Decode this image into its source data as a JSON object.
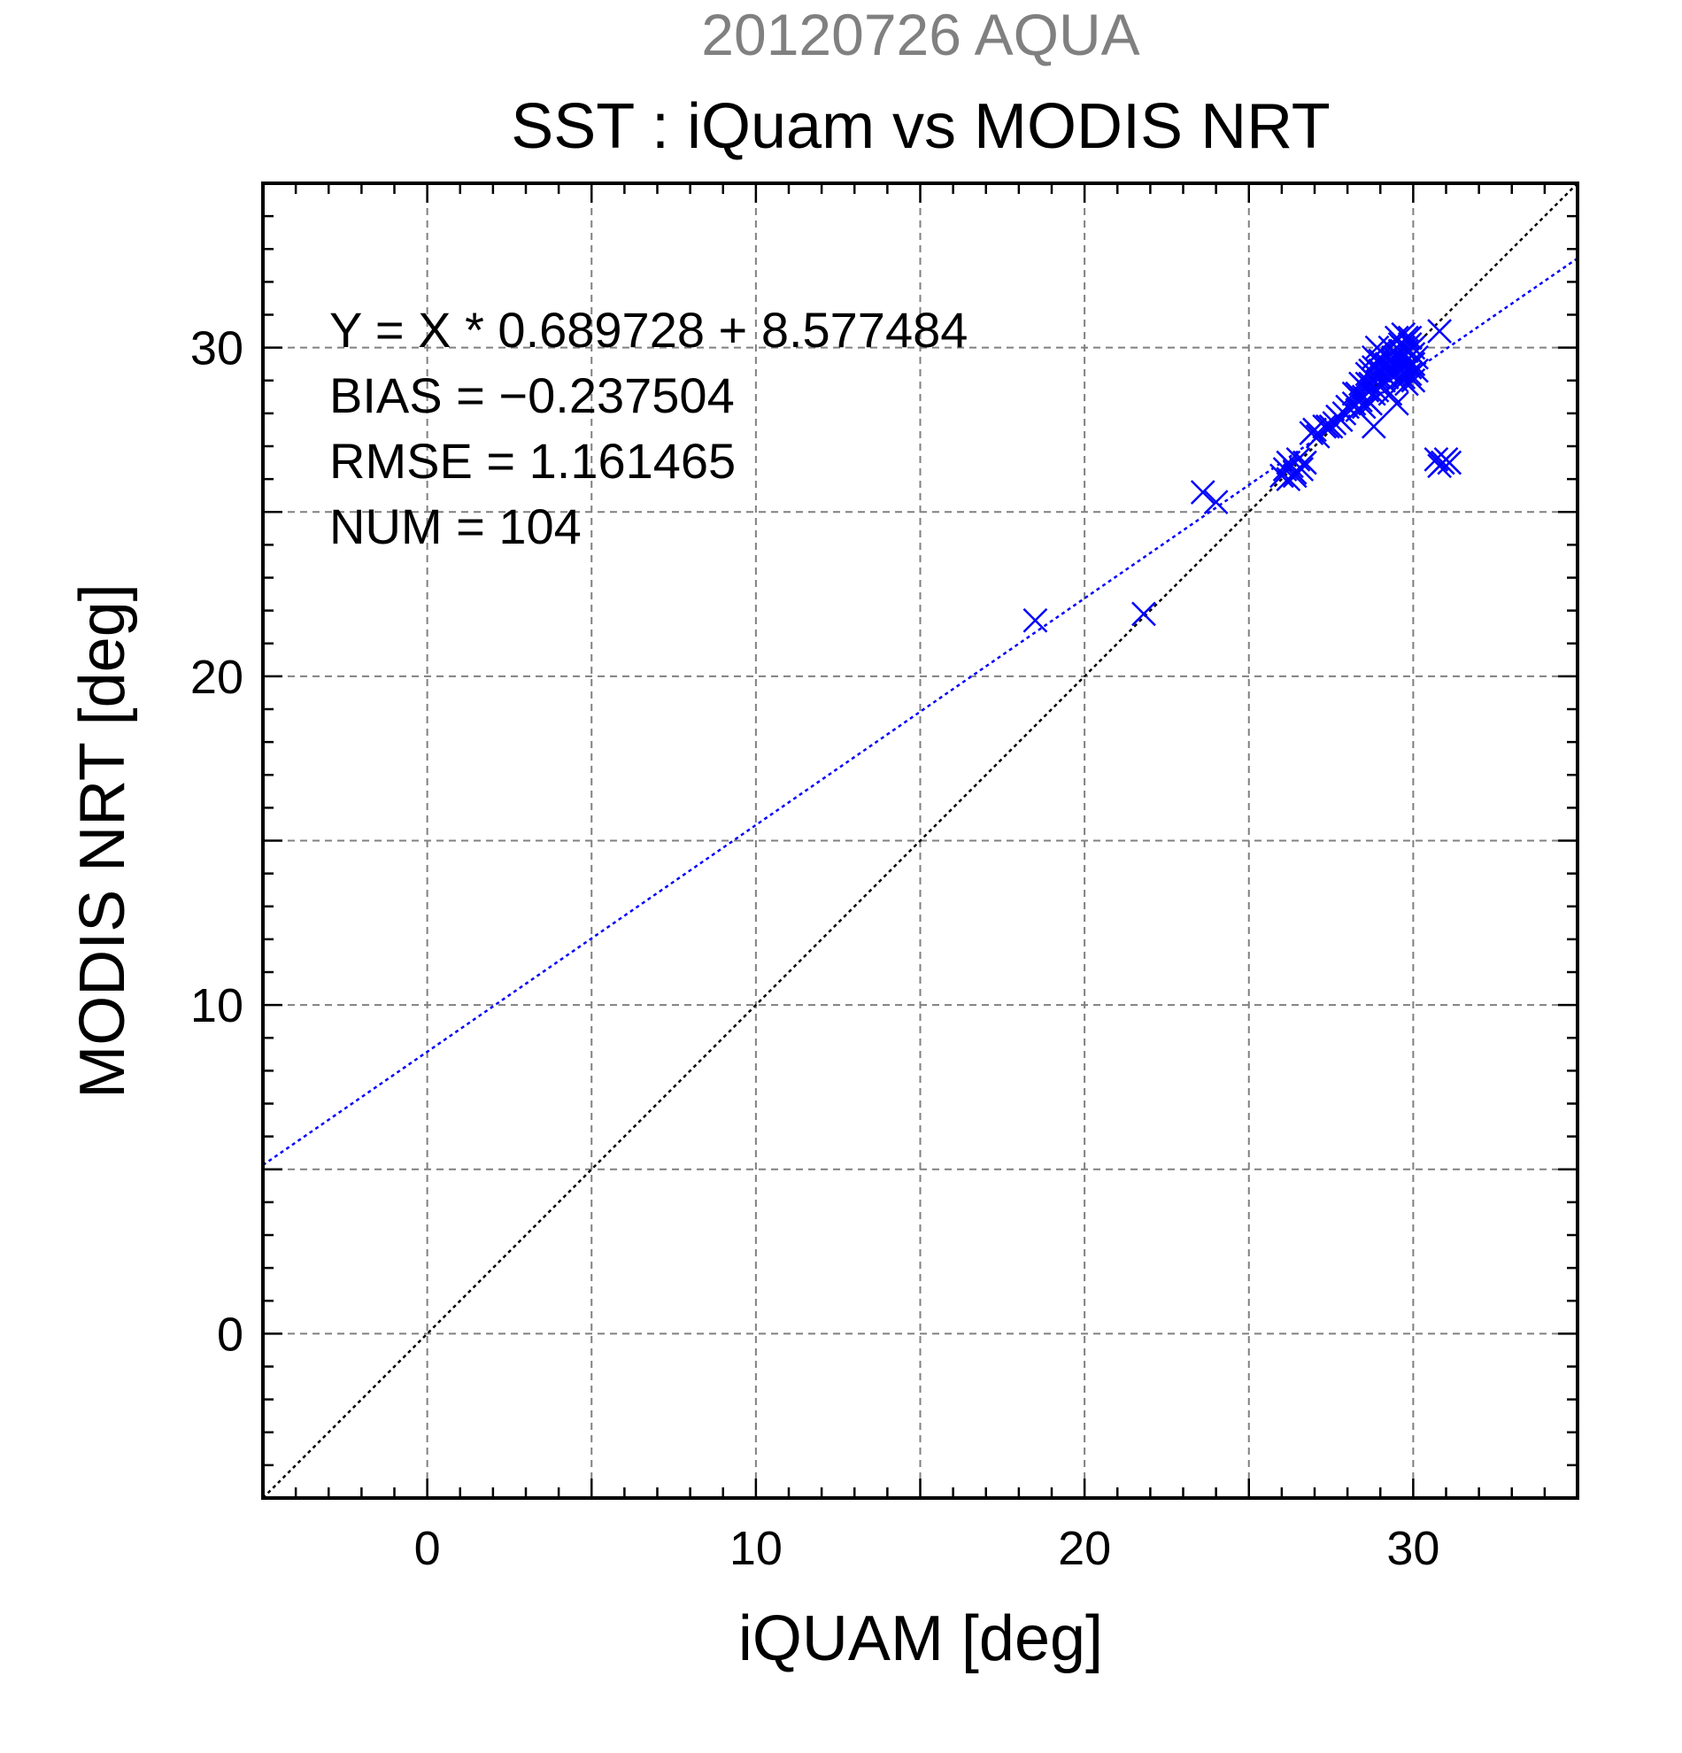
{
  "chart_data": {
    "type": "scatter",
    "supertitle": "20120726 AQUA",
    "title": "SST : iQuam vs MODIS NRT",
    "xlabel": "iQUAM [deg]",
    "ylabel": "MODIS NRT [deg]",
    "xlim": [
      -5,
      35
    ],
    "ylim": [
      -5,
      35
    ],
    "xticks": [
      0,
      10,
      20,
      30
    ],
    "yticks": [
      0,
      10,
      20,
      30
    ],
    "grid_step": 5,
    "minor_step": 1,
    "grid": true,
    "annotations": [
      "Y = X * 0.689728 + 8.577484",
      "BIAS = −0.237504",
      "RMSE = 1.161465",
      "NUM = 104"
    ],
    "fit": {
      "slope": 0.689728,
      "intercept": 8.577484
    },
    "colors": {
      "supertitle": "#808080",
      "points": "#0000ff",
      "fit_line": "#0000ff",
      "identity_line": "#000000",
      "grid": "#808080"
    },
    "series": [
      {
        "marker": "x",
        "points": [
          [
            18.5,
            21.7
          ],
          [
            21.8,
            21.9
          ],
          [
            23.6,
            25.6
          ],
          [
            24.0,
            25.3
          ],
          [
            26.0,
            26.1
          ],
          [
            26.1,
            26.3
          ],
          [
            26.2,
            26.0
          ],
          [
            26.3,
            26.4
          ],
          [
            26.4,
            26.2
          ],
          [
            26.5,
            26.6
          ],
          [
            26.6,
            26.3
          ],
          [
            26.7,
            26.5
          ],
          [
            26.2,
            26.5
          ],
          [
            26.4,
            26.1
          ],
          [
            26.9,
            27.4
          ],
          [
            27.0,
            27.5
          ],
          [
            27.1,
            27.3
          ],
          [
            27.3,
            27.6
          ],
          [
            27.5,
            27.6
          ],
          [
            27.7,
            27.9
          ],
          [
            27.9,
            28.0
          ],
          [
            28.0,
            28.2
          ],
          [
            28.2,
            28.3
          ],
          [
            28.3,
            28.6
          ],
          [
            28.4,
            28.4
          ],
          [
            28.5,
            28.8
          ],
          [
            28.6,
            28.7
          ],
          [
            28.7,
            28.9
          ],
          [
            28.8,
            28.6
          ],
          [
            28.9,
            29.1
          ],
          [
            29.0,
            29.3
          ],
          [
            29.0,
            28.8
          ],
          [
            29.1,
            29.0
          ],
          [
            29.2,
            29.5
          ],
          [
            29.3,
            29.4
          ],
          [
            29.4,
            29.6
          ],
          [
            29.5,
            29.8
          ],
          [
            29.6,
            29.7
          ],
          [
            29.7,
            30.0
          ],
          [
            29.8,
            29.9
          ],
          [
            29.9,
            30.1
          ],
          [
            30.0,
            29.8
          ],
          [
            29.5,
            30.3
          ],
          [
            29.7,
            30.4
          ],
          [
            29.3,
            30.0
          ],
          [
            29.1,
            29.8
          ],
          [
            28.9,
            29.6
          ],
          [
            28.8,
            29.4
          ],
          [
            28.7,
            28.3
          ],
          [
            28.6,
            28.9
          ],
          [
            28.5,
            28.5
          ],
          [
            28.4,
            28.9
          ],
          [
            28.3,
            28.1
          ],
          [
            28.2,
            28.6
          ],
          [
            28.7,
            29.1
          ],
          [
            28.8,
            29.0
          ],
          [
            28.9,
            28.7
          ],
          [
            29.0,
            29.6
          ],
          [
            29.1,
            29.2
          ],
          [
            29.2,
            29.1
          ],
          [
            29.3,
            29.3
          ],
          [
            29.4,
            29.2
          ],
          [
            29.5,
            29.4
          ],
          [
            29.6,
            29.3
          ],
          [
            29.7,
            29.5
          ],
          [
            29.8,
            29.6
          ],
          [
            29.9,
            29.4
          ],
          [
            30.0,
            29.5
          ],
          [
            29.6,
            30.1
          ],
          [
            29.8,
            30.3
          ],
          [
            29.4,
            29.9
          ],
          [
            29.2,
            29.7
          ],
          [
            29.0,
            29.9
          ],
          [
            28.8,
            29.7
          ],
          [
            28.6,
            29.2
          ],
          [
            28.9,
            30.0
          ],
          [
            29.5,
            29.0
          ],
          [
            29.7,
            29.1
          ],
          [
            29.9,
            29.2
          ],
          [
            30.1,
            29.3
          ],
          [
            30.0,
            29.0
          ],
          [
            29.8,
            28.9
          ],
          [
            29.3,
            28.6
          ],
          [
            29.5,
            28.3
          ],
          [
            28.8,
            27.6
          ],
          [
            30.8,
            30.5
          ],
          [
            29.9,
            30.3
          ],
          [
            30.1,
            29.7
          ],
          [
            30.0,
            30.0
          ],
          [
            29.4,
            29.7
          ],
          [
            29.6,
            29.9
          ],
          [
            29.1,
            29.4
          ],
          [
            28.9,
            29.3
          ],
          [
            28.7,
            29.3
          ],
          [
            30.7,
            26.6
          ],
          [
            30.9,
            26.5
          ],
          [
            31.1,
            26.5
          ],
          [
            31.0,
            26.6
          ],
          [
            30.8,
            26.4
          ],
          [
            28.5,
            28.2
          ],
          [
            28.6,
            28.4
          ],
          [
            27.8,
            27.8
          ],
          [
            27.6,
            27.7
          ],
          [
            27.4,
            27.6
          ]
        ]
      }
    ]
  }
}
